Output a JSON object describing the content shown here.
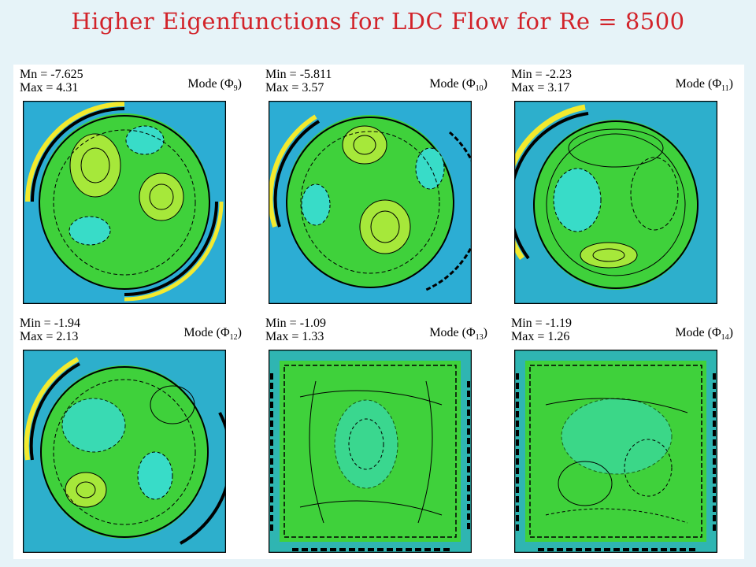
{
  "title": "Higher Eigenfunctions for LDC Flow for Re = 8500",
  "panels": [
    {
      "min_label": "Mn = -7.625",
      "max_label": "Max = 4.31",
      "mode_label": "Mode (Φ",
      "mode_index": "9"
    },
    {
      "min_label": "Min = -5.811",
      "max_label": "Max = 3.57",
      "mode_label": "Mode (Φ",
      "mode_index": "10"
    },
    {
      "min_label": "Min = -2.23",
      "max_label": "Max = 3.17",
      "mode_label": "Mode (Φ",
      "mode_index": "11"
    },
    {
      "min_label": "Min = -1.94",
      "max_label": "Max = 2.13",
      "mode_label": "Mode (Φ",
      "mode_index": "12"
    },
    {
      "min_label": "Min = -1.09",
      "max_label": "Max = 1.33",
      "mode_label": "Mode (Φ",
      "mode_index": "13"
    },
    {
      "min_label": "Min = -1.19",
      "max_label": "Max = 1.26",
      "mode_label": "Mode (Φ",
      "mode_index": "14"
    }
  ],
  "colors": {
    "title": "#d2232a",
    "background": "#e6f3f8",
    "field_green": "#3fd13b",
    "field_light": "#a6e83a",
    "field_cyan": "#38dcc8",
    "edge_blue": "#2aa9e6",
    "edge_yellow": "#f3ea2e",
    "contour": "#000000"
  }
}
